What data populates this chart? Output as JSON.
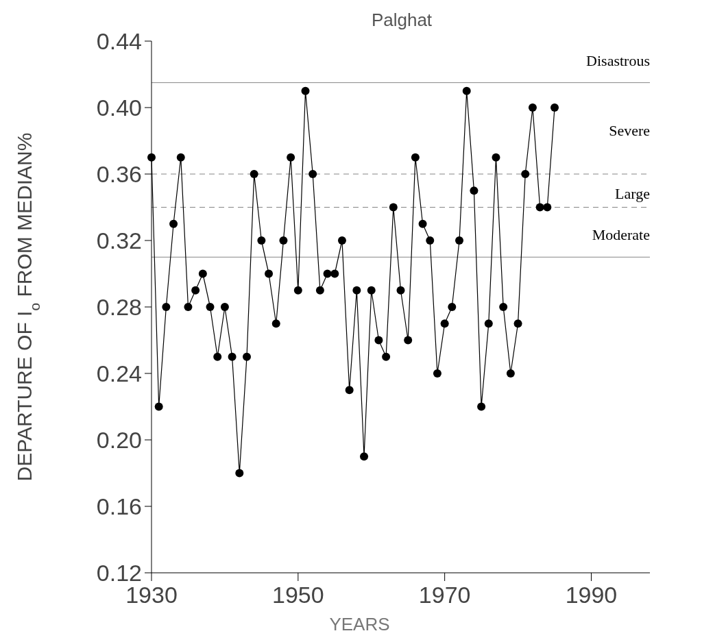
{
  "chart_data": {
    "type": "line",
    "title": "Palghat",
    "xlabel": "YEARS",
    "ylabel": "DEPARTURE OF I$_{o}$ FROM MEDIAN%",
    "x": [
      1930,
      1931,
      1932,
      1933,
      1934,
      1935,
      1936,
      1937,
      1938,
      1939,
      1940,
      1941,
      1942,
      1943,
      1944,
      1945,
      1946,
      1947,
      1948,
      1949,
      1950,
      1951,
      1952,
      1953,
      1954,
      1955,
      1956,
      1957,
      1958,
      1959,
      1960,
      1961,
      1962,
      1963,
      1964,
      1965,
      1966,
      1967,
      1968,
      1969,
      1970,
      1971,
      1972,
      1973,
      1974,
      1975,
      1976,
      1977,
      1978,
      1979,
      1980,
      1981,
      1982,
      1983,
      1984,
      1985
    ],
    "series": [
      {
        "color": "#000000",
        "values": [
          0.37,
          0.22,
          0.28,
          0.33,
          0.37,
          0.28,
          0.29,
          0.3,
          0.28,
          0.25,
          0.28,
          0.25,
          0.18,
          0.25,
          0.36,
          0.32,
          0.3,
          0.27,
          0.32,
          0.37,
          0.29,
          0.41,
          0.36,
          0.29,
          0.3,
          0.3,
          0.32,
          0.23,
          0.29,
          0.19,
          0.29,
          0.26,
          0.25,
          0.34,
          0.29,
          0.26,
          0.37,
          0.33,
          0.32,
          0.24,
          0.27,
          0.28,
          0.32,
          0.41,
          0.35,
          0.22,
          0.27,
          0.37,
          0.28,
          0.24,
          0.27,
          0.36,
          0.4,
          0.34,
          0.34,
          0.4
        ]
      }
    ],
    "marker": "circle",
    "line_style": "solid",
    "xlim": [
      1930,
      1998
    ],
    "xticks": [
      1930,
      1950,
      1970,
      1990
    ],
    "ylim": [
      0.12,
      0.44
    ],
    "yticks": [
      {
        "value": 0.12,
        "label": "0.12"
      },
      {
        "value": 0.16,
        "label": "0.16"
      },
      {
        "value": 0.2,
        "label": "0.20"
      },
      {
        "value": 0.24,
        "label": "0.24"
      },
      {
        "value": 0.28,
        "label": "0.28"
      },
      {
        "value": 0.32,
        "label": "0.32"
      },
      {
        "value": 0.36,
        "label": "0.36"
      },
      {
        "value": 0.4,
        "label": "0.40"
      },
      {
        "value": 0.44,
        "label": "0.44"
      }
    ],
    "ref_lines": [
      {
        "axis": "y",
        "value": 0.415,
        "color": "#000000"
      },
      {
        "axis": "y",
        "value": 0.36,
        "color": "#000000",
        "line_style": "dashed"
      },
      {
        "axis": "y",
        "value": 0.34,
        "color": "#000000",
        "line_style": "dashed"
      },
      {
        "axis": "y",
        "value": 0.31,
        "color": "#000000"
      }
    ],
    "annotations": [
      "Disastrous",
      "Severe",
      "Large",
      "Moderate"
    ],
    "grid": false
  }
}
